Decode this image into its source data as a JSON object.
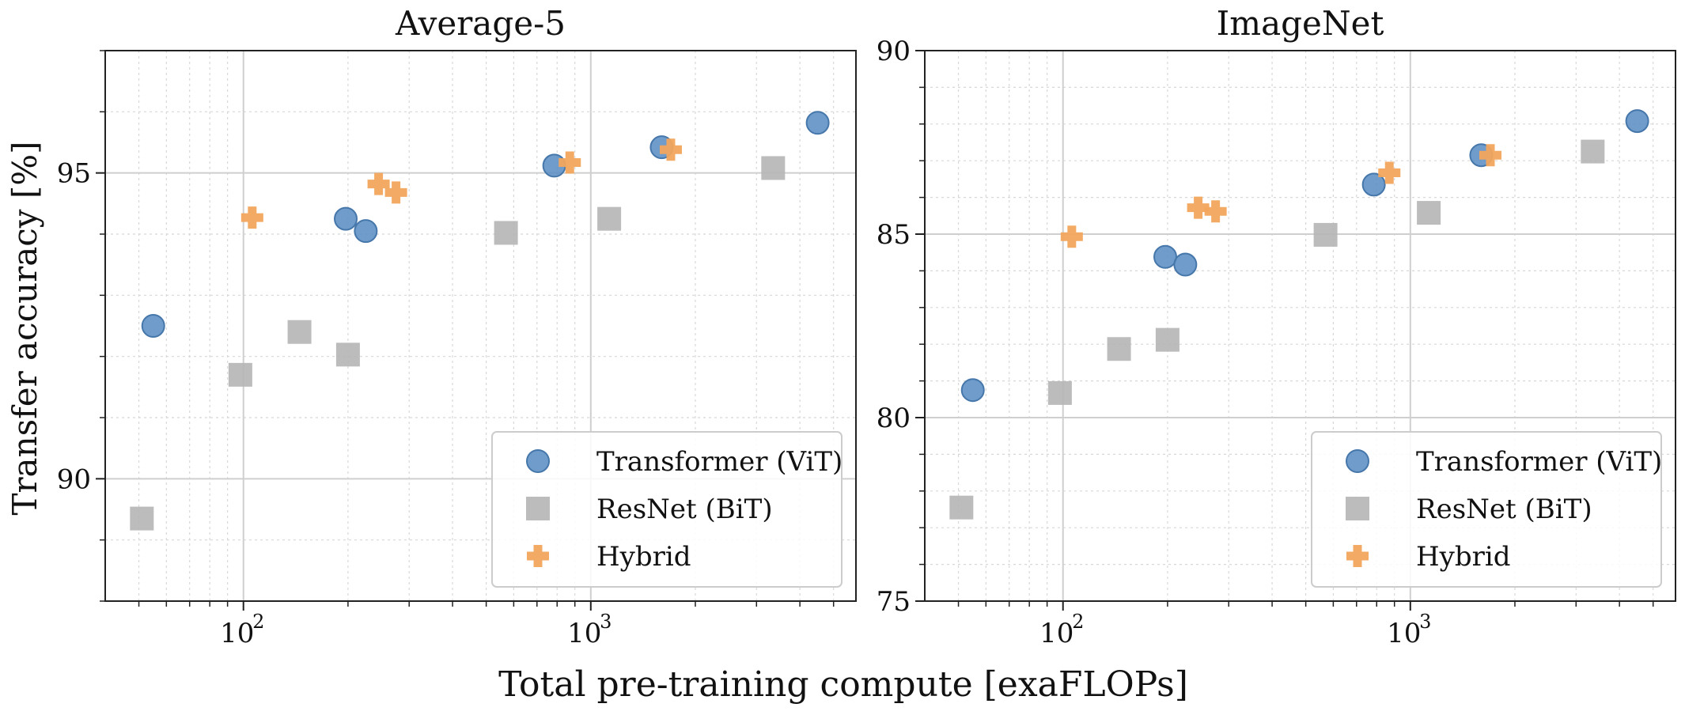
{
  "figure": {
    "xlabel": "Total pre-training compute [exaFLOPs]",
    "ylabel": "Transfer accuracy [%]"
  },
  "legend": {
    "placement": "lower-right",
    "entries": [
      {
        "label": "Transformer (ViT)",
        "marker": "circle",
        "color": "#5b8ec3"
      },
      {
        "label": "ResNet (BiT)",
        "marker": "square",
        "color": "#b5b5b5"
      },
      {
        "label": "Hybrid",
        "marker": "plus",
        "color": "#f2a55c"
      }
    ]
  },
  "chart_data": [
    {
      "type": "scatter",
      "title": "Average-5",
      "xscale": "log",
      "xlim": [
        40,
        5800
      ],
      "ylim": [
        88,
        97
      ],
      "yticks": [
        90,
        95
      ],
      "ytick_labels": [
        "90",
        "95"
      ],
      "xticks": [
        100,
        1000
      ],
      "xtick_labels": [
        "10",
        "10"
      ],
      "xtick_exponents": [
        "2",
        "3"
      ],
      "grid": true,
      "series": [
        {
          "name": "Transformer (ViT)",
          "marker": "circle",
          "color": "#5b8ec3",
          "points": [
            [
              55,
              92.5
            ],
            [
              197,
              94.25
            ],
            [
              225,
              94.05
            ],
            [
              785,
              95.12
            ],
            [
              1600,
              95.42
            ],
            [
              4500,
              95.82
            ]
          ]
        },
        {
          "name": "ResNet (BiT)",
          "marker": "square",
          "color": "#b5b5b5",
          "points": [
            [
              51,
              89.35
            ],
            [
              98,
              91.7
            ],
            [
              145,
              92.4
            ],
            [
              200,
              92.03
            ],
            [
              570,
              94.02
            ],
            [
              1130,
              94.25
            ],
            [
              3350,
              95.08
            ]
          ]
        },
        {
          "name": "Hybrid",
          "marker": "plus",
          "color": "#f2a55c",
          "points": [
            [
              106,
              94.27
            ],
            [
              245,
              94.82
            ],
            [
              275,
              94.68
            ],
            [
              870,
              95.17
            ],
            [
              1700,
              95.38
            ]
          ]
        }
      ]
    },
    {
      "type": "scatter",
      "title": "ImageNet",
      "xscale": "log",
      "xlim": [
        40,
        5800
      ],
      "ylim": [
        75,
        90
      ],
      "yticks": [
        75,
        80,
        85,
        90
      ],
      "ytick_labels": [
        "75",
        "80",
        "85",
        "90"
      ],
      "xticks": [
        100,
        1000
      ],
      "xtick_labels": [
        "10",
        "10"
      ],
      "xtick_exponents": [
        "2",
        "3"
      ],
      "grid": true,
      "series": [
        {
          "name": "Transformer (ViT)",
          "marker": "circle",
          "color": "#5b8ec3",
          "points": [
            [
              55,
              80.75
            ],
            [
              197,
              84.38
            ],
            [
              225,
              84.17
            ],
            [
              785,
              86.35
            ],
            [
              1600,
              87.15
            ],
            [
              4500,
              88.08
            ]
          ]
        },
        {
          "name": "ResNet (BiT)",
          "marker": "square",
          "color": "#b5b5b5",
          "points": [
            [
              51,
              77.55
            ],
            [
              98,
              80.67
            ],
            [
              145,
              81.87
            ],
            [
              200,
              82.12
            ],
            [
              570,
              84.98
            ],
            [
              1130,
              85.58
            ],
            [
              3350,
              87.25
            ]
          ]
        },
        {
          "name": "Hybrid",
          "marker": "plus",
          "color": "#f2a55c",
          "points": [
            [
              106,
              84.93
            ],
            [
              245,
              85.72
            ],
            [
              275,
              85.62
            ],
            [
              870,
              86.67
            ],
            [
              1700,
              87.15
            ]
          ]
        }
      ]
    }
  ]
}
